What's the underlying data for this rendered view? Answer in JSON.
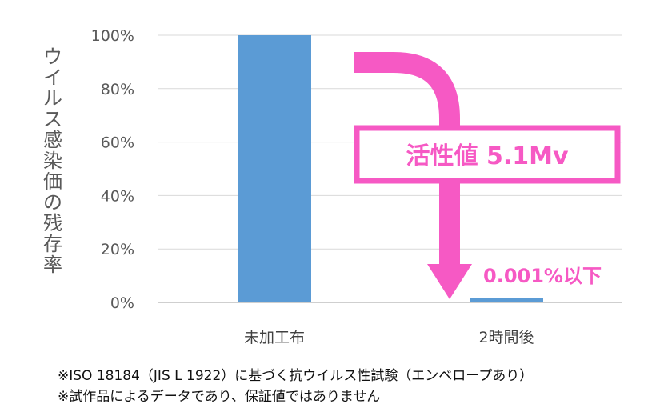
{
  "chart_data": {
    "type": "bar",
    "categories": [
      "未加工布",
      "2時間後"
    ],
    "values": [
      100,
      0.001
    ],
    "ylabel": "ウイルス感染価の残存率",
    "ylim": [
      0,
      100
    ],
    "yticks": [
      "0%",
      "20%",
      "40%",
      "60%",
      "80%",
      "100%"
    ],
    "grid": true,
    "bar_color": "#5b9bd5",
    "annotations": {
      "activity": "活性値 5.1Mv",
      "below": "0.001%以下"
    },
    "accent_color": "#f659c4"
  },
  "footnotes": [
    "※ISO 18184（JIS L 1922）に基づく抗ウイルス性試験（エンベロープあり）",
    "※試作品によるデータであり、保証値ではありません"
  ]
}
